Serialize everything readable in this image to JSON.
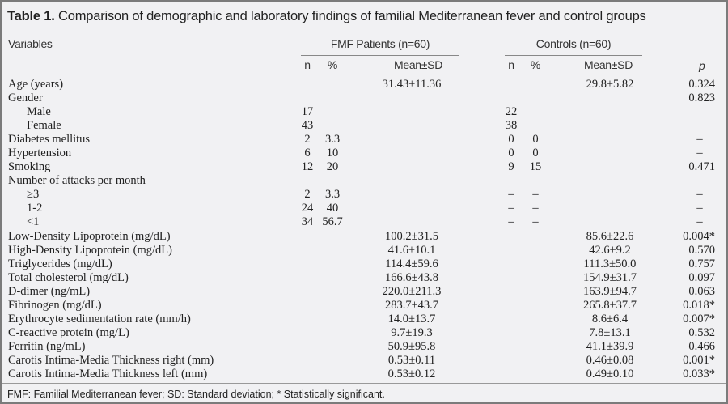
{
  "title": {
    "label": "Table 1.",
    "text": "Comparison of demographic and laboratory findings of familial Mediterranean fever and control groups"
  },
  "header": {
    "variables": "Variables",
    "fmf_group": "FMF Patients  (n=60)",
    "control_group": "Controls (n=60)",
    "n": "n",
    "pct": "%",
    "mean_sd": "Mean±SD",
    "p": "p"
  },
  "rows": [
    {
      "var": "Age (years)",
      "indent": 0,
      "fn": "",
      "fp": "",
      "fm": "31.43±11.36",
      "cn": "",
      "cp": "",
      "cm": "29.8±5.82",
      "p": "0.324"
    },
    {
      "var": "Gender",
      "indent": 0,
      "fn": "",
      "fp": "",
      "fm": "",
      "cn": "",
      "cp": "",
      "cm": "",
      "p": "0.823"
    },
    {
      "var": "Male",
      "indent": 1,
      "fn": "17",
      "fp": "",
      "fm": "",
      "cn": "22",
      "cp": "",
      "cm": "",
      "p": ""
    },
    {
      "var": "Female",
      "indent": 1,
      "fn": "43",
      "fp": "",
      "fm": "",
      "cn": "38",
      "cp": "",
      "cm": "",
      "p": ""
    },
    {
      "var": "Diabetes mellitus",
      "indent": 0,
      "fn": "2",
      "fp": "3.3",
      "fm": "",
      "cn": "0",
      "cp": "0",
      "cm": "",
      "p": "–"
    },
    {
      "var": "Hypertension",
      "indent": 0,
      "fn": "6",
      "fp": "10",
      "fm": "",
      "cn": "0",
      "cp": "0",
      "cm": "",
      "p": "–"
    },
    {
      "var": "Smoking",
      "indent": 0,
      "fn": "12",
      "fp": "20",
      "fm": "",
      "cn": "9",
      "cp": "15",
      "cm": "",
      "p": "0.471"
    },
    {
      "var": "Number of attacks per month",
      "indent": 0,
      "fn": "",
      "fp": "",
      "fm": "",
      "cn": "",
      "cp": "",
      "cm": "",
      "p": ""
    },
    {
      "var": "≥3",
      "indent": 1,
      "fn": "2",
      "fp": "3.3",
      "fm": "",
      "cn": "–",
      "cp": "–",
      "cm": "",
      "p": "–"
    },
    {
      "var": "1-2",
      "indent": 1,
      "fn": "24",
      "fp": "40",
      "fm": "",
      "cn": "–",
      "cp": "–",
      "cm": "",
      "p": "–"
    },
    {
      "var": "<1",
      "indent": 1,
      "fn": "34",
      "fp": "56.7",
      "fm": "",
      "cn": "–",
      "cp": "–",
      "cm": "",
      "p": "–"
    },
    {
      "var": "Low-Density Lipoprotein (mg/dL)",
      "indent": 0,
      "fn": "",
      "fp": "",
      "fm": "100.2±31.5",
      "cn": "",
      "cp": "",
      "cm": "85.6±22.6",
      "p": "0.004*"
    },
    {
      "var": "High-Density Lipoprotein (mg/dL)",
      "indent": 0,
      "fn": "",
      "fp": "",
      "fm": "41.6±10.1",
      "cn": "",
      "cp": "",
      "cm": "42.6±9.2",
      "p": "0.570"
    },
    {
      "var": "Triglycerides (mg/dL)",
      "indent": 0,
      "fn": "",
      "fp": "",
      "fm": "114.4±59.6",
      "cn": "",
      "cp": "",
      "cm": "111.3±50.0",
      "p": "0.757"
    },
    {
      "var": "Total cholesterol (mg/dL)",
      "indent": 0,
      "fn": "",
      "fp": "",
      "fm": "166.6±43.8",
      "cn": "",
      "cp": "",
      "cm": "154.9±31.7",
      "p": "0.097"
    },
    {
      "var": "D-dimer (ng/mL)",
      "indent": 0,
      "fn": "",
      "fp": "",
      "fm": "220.0±211.3",
      "cn": "",
      "cp": "",
      "cm": "163.9±94.7",
      "p": "0.063"
    },
    {
      "var": "Fibrinogen (mg/dL)",
      "indent": 0,
      "fn": "",
      "fp": "",
      "fm": "283.7±43.7",
      "cn": "",
      "cp": "",
      "cm": "265.8±37.7",
      "p": "0.018*"
    },
    {
      "var": "Erythrocyte sedimentation rate (mm/h)",
      "indent": 0,
      "fn": "",
      "fp": "",
      "fm": "14.0±13.7",
      "cn": "",
      "cp": "",
      "cm": "8.6±6.4",
      "p": "0.007*"
    },
    {
      "var": "C-reactive protein (mg/L)",
      "indent": 0,
      "fn": "",
      "fp": "",
      "fm": "9.7±19.3",
      "cn": "",
      "cp": "",
      "cm": "7.8±13.1",
      "p": "0.532"
    },
    {
      "var": "Ferritin (ng/mL)",
      "indent": 0,
      "fn": "",
      "fp": "",
      "fm": "50.9±95.8",
      "cn": "",
      "cp": "",
      "cm": "41.1±39.9",
      "p": "0.466"
    },
    {
      "var": "Carotis Intima-Media Thickness right (mm)",
      "indent": 0,
      "fn": "",
      "fp": "",
      "fm": "0.53±0.11",
      "cn": "",
      "cp": "",
      "cm": "0.46±0.08",
      "p": "0.001*"
    },
    {
      "var": "Carotis Intima-Media Thickness left (mm)",
      "indent": 0,
      "fn": "",
      "fp": "",
      "fm": "0.53±0.12",
      "cn": "",
      "cp": "",
      "cm": "0.49±0.10",
      "p": "0.033*"
    }
  ],
  "footnote": "FMF: Familial Mediterranean fever; SD: Standard deviation; * Statistically significant."
}
